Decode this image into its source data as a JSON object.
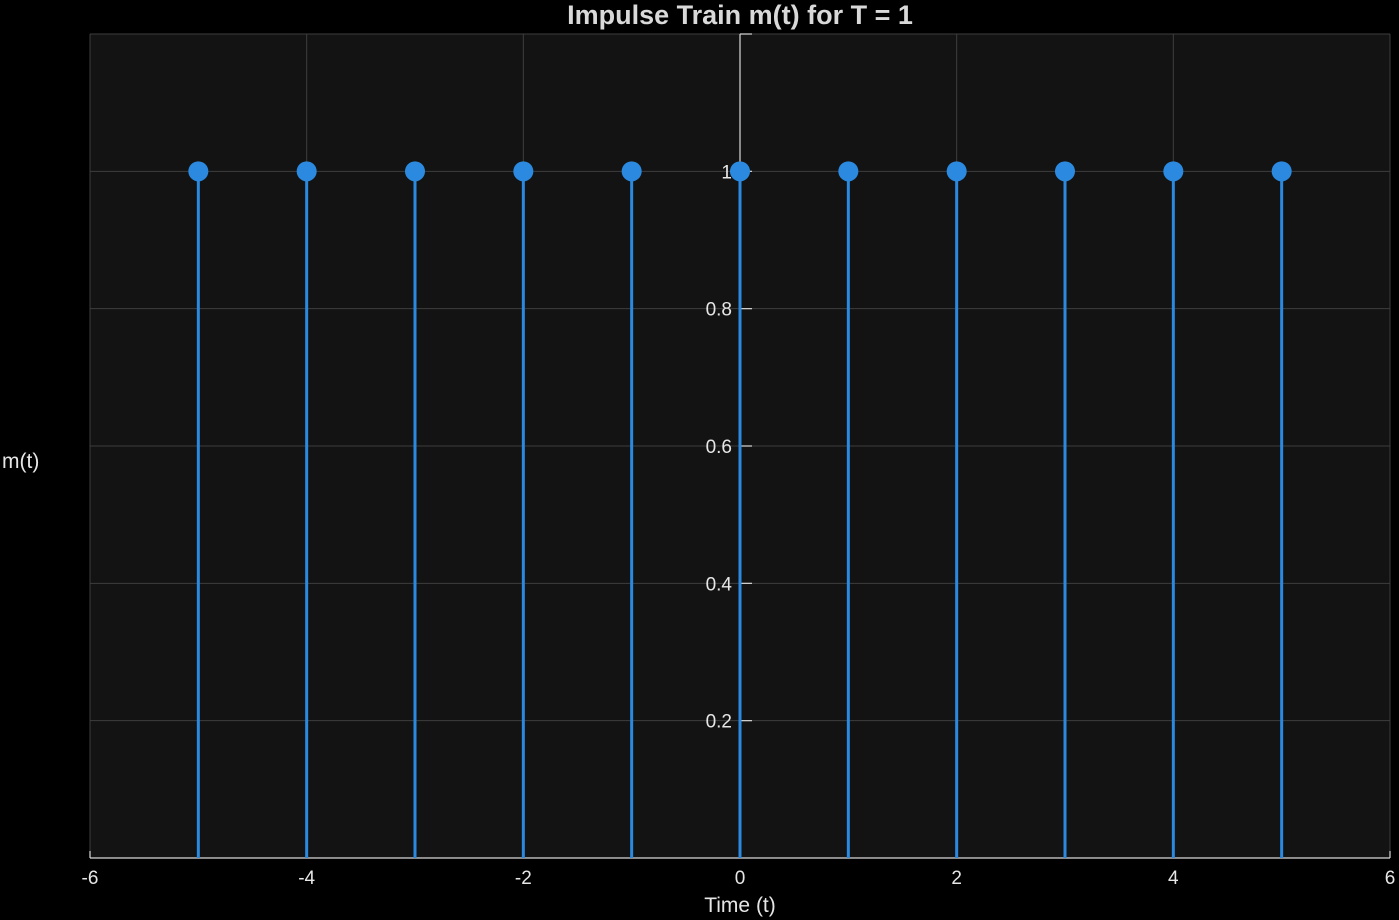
{
  "chart_data": {
    "type": "stem",
    "title": "Impulse Train m(t) for T = 1",
    "xlabel": "Time (t)",
    "ylabel": "m(t)",
    "xlim": [
      -6,
      6
    ],
    "ylim": [
      0,
      1.2
    ],
    "x_ticks": [
      -6,
      -4,
      -2,
      0,
      2,
      4,
      6
    ],
    "y_ticks": [
      0.2,
      0.4,
      0.6,
      0.8,
      1
    ],
    "x_tick_labels": [
      "-6",
      "-4",
      "-2",
      "0",
      "2",
      "4",
      "6"
    ],
    "y_tick_labels": [
      "0.2",
      "0.4",
      "0.6",
      "0.8",
      "1"
    ],
    "grid": true,
    "series": [
      {
        "x": [
          -5,
          -4,
          -3,
          -2,
          -1,
          0,
          1,
          2,
          3,
          4,
          5
        ],
        "y": [
          1,
          1,
          1,
          1,
          1,
          1,
          1,
          1,
          1,
          1,
          1
        ]
      }
    ],
    "colors": {
      "background": "#000000",
      "plot_background": "#131313",
      "stem": "#2b8ae0",
      "grid": "#3e3e3e",
      "text": "#e6e6e6"
    }
  }
}
